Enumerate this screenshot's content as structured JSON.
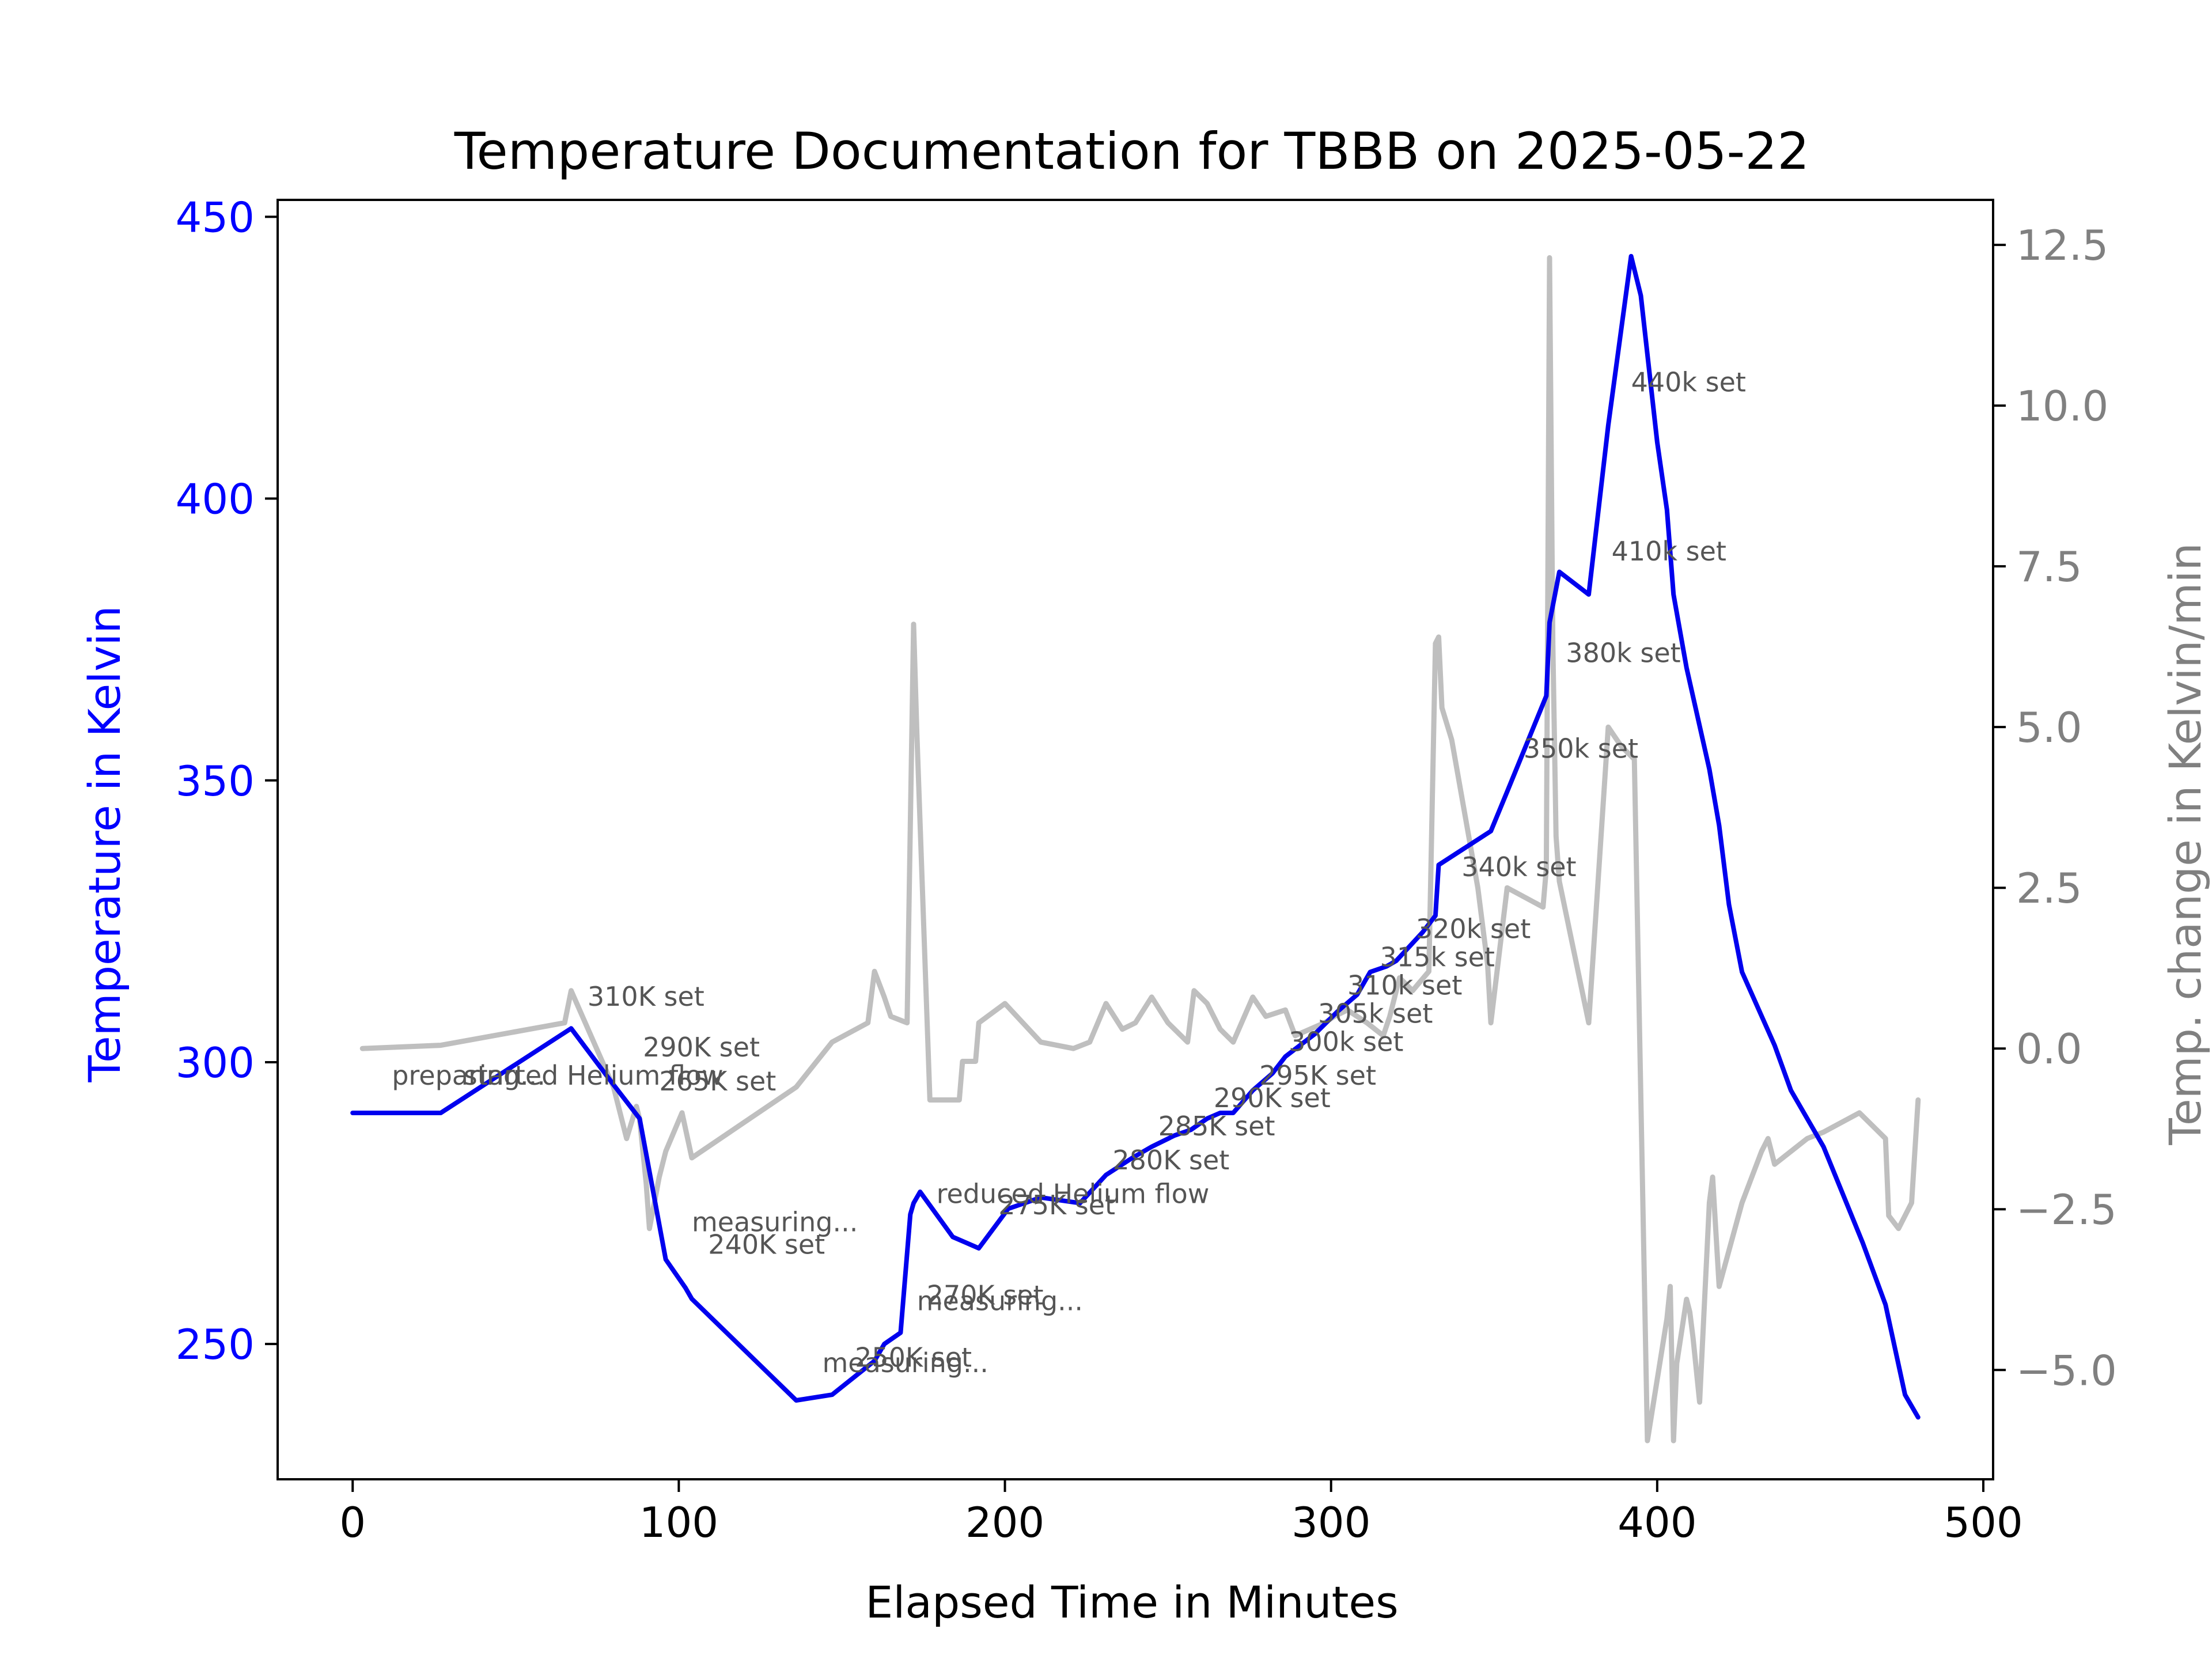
{
  "chart_data": {
    "type": "line",
    "title": "Temperature Documentation for TBBB on 2025-05-22",
    "xlabel": "Elapsed Time in Minutes",
    "ylabel_left": "Temperature in Kelvin",
    "ylabel_right": "Temp. change in Kelvin/min",
    "xlim": [
      -23,
      503
    ],
    "ylim_left": [
      226,
      453
    ],
    "ylim_right": [
      -6.7,
      13.2
    ],
    "xticks": [
      0,
      100,
      200,
      300,
      400,
      500
    ],
    "yticks_left": [
      250,
      300,
      350,
      400,
      450
    ],
    "yticks_right": [
      -5.0,
      -2.5,
      0.0,
      2.5,
      5.0,
      7.5,
      10.0,
      12.5
    ],
    "yticks_right_labels": [
      "−5.0",
      "−2.5",
      "0.0",
      "2.5",
      "5.0",
      "7.5",
      "10.0",
      "12.5"
    ],
    "colors": {
      "temperature": "#0000ee",
      "rate": "#bfbfbf",
      "left_axis": "#0000ff",
      "right_axis": "#808080",
      "annotation": "#555555"
    },
    "grid": false,
    "series": [
      {
        "axis": "left",
        "color": "#0000ee",
        "x": [
          0,
          5,
          27,
          67,
          80,
          88,
          96,
          102,
          104,
          136,
          147,
          160,
          163,
          168,
          171,
          172,
          174,
          184,
          192,
          201,
          211,
          223,
          231,
          239,
          245,
          252,
          257,
          262,
          266,
          270,
          276,
          282,
          286,
          295,
          302,
          308,
          312,
          317,
          320,
          328,
          332,
          333,
          349,
          354,
          366,
          367,
          370,
          379,
          385,
          392,
          395,
          400,
          403,
          405,
          409,
          416,
          419,
          422,
          426,
          436,
          441,
          451,
          463,
          470,
          476,
          480
        ],
        "y": [
          291,
          291,
          291,
          306,
          296,
          290,
          265,
          260,
          258,
          240,
          241,
          247,
          250,
          252,
          273,
          275,
          277,
          269,
          267,
          274,
          276,
          275,
          280,
          283,
          285,
          287,
          288,
          290,
          291,
          291,
          295,
          298,
          301,
          305,
          309,
          312,
          316,
          317,
          318,
          323,
          326,
          335,
          341,
          348,
          365,
          378,
          387,
          383,
          413,
          443,
          436,
          410,
          398,
          383,
          370,
          352,
          342,
          328,
          316,
          303,
          295,
          285,
          268,
          257,
          241,
          237
        ]
      },
      {
        "axis": "right",
        "color": "#bfbfbf",
        "x": [
          3,
          27,
          65,
          67,
          80,
          84,
          87,
          88,
          90,
          91,
          94,
          96,
          101,
          104,
          136,
          147,
          158,
          160,
          163,
          165,
          170,
          172,
          173,
          177,
          186,
          187,
          191,
          192,
          200,
          211,
          221,
          226,
          231,
          236,
          240,
          245,
          250,
          256,
          258,
          262,
          266,
          270,
          276,
          280,
          286,
          289,
          298,
          301,
          305,
          311,
          316,
          318,
          321,
          325,
          330,
          332,
          333,
          334,
          337,
          345,
          348,
          349,
          354,
          365,
          366,
          367,
          368,
          369,
          370,
          379,
          385,
          389,
          393,
          397,
          403,
          404,
          405,
          406,
          409,
          410,
          411,
          413,
          416,
          417,
          419,
          426,
          432,
          434,
          436,
          441,
          446,
          451,
          462,
          470,
          471,
          474,
          478,
          480
        ],
        "y": [
          0.0,
          0.05,
          0.4,
          0.9,
          -0.6,
          -1.4,
          -0.9,
          -1.1,
          -2.1,
          -2.8,
          -2.0,
          -1.6,
          -1.0,
          -1.7,
          -0.6,
          0.1,
          0.4,
          1.2,
          0.8,
          0.5,
          0.4,
          6.6,
          4.9,
          -0.8,
          -0.8,
          -0.2,
          -0.2,
          0.4,
          0.7,
          0.1,
          0.0,
          0.1,
          0.7,
          0.3,
          0.4,
          0.8,
          0.4,
          0.1,
          0.9,
          0.7,
          0.3,
          0.1,
          0.8,
          0.5,
          0.6,
          0.2,
          0.4,
          0.5,
          0.6,
          0.4,
          0.2,
          0.5,
          1.1,
          0.9,
          1.2,
          6.3,
          6.4,
          5.3,
          4.8,
          2.5,
          1.3,
          0.4,
          2.5,
          2.2,
          2.8,
          12.3,
          6.3,
          3.3,
          2.6,
          0.4,
          5.0,
          4.7,
          4.5,
          -6.1,
          -4.2,
          -3.7,
          -6.1,
          -4.9,
          -3.9,
          -4.1,
          -4.5,
          -5.5,
          -2.4,
          -2.0,
          -3.7,
          -2.4,
          -1.6,
          -1.4,
          -1.8,
          -1.6,
          -1.4,
          -1.3,
          -1.0,
          -1.4,
          -2.6,
          -2.8,
          -2.4,
          -0.8
        ]
      }
    ],
    "annotations": [
      {
        "text": "310K set",
        "x": 72,
        "y": 310
      },
      {
        "text": "preparing...",
        "x": 12,
        "y": 296
      },
      {
        "text": "started Helium flow",
        "x": 34,
        "y": 296
      },
      {
        "text": "290K set",
        "x": 89,
        "y": 301
      },
      {
        "text": "265K set",
        "x": 94,
        "y": 295
      },
      {
        "text": "measuring...",
        "x": 104,
        "y": 270
      },
      {
        "text": "240K set",
        "x": 109,
        "y": 266
      },
      {
        "text": "reduced Helium flow",
        "x": 179,
        "y": 275
      },
      {
        "text": "275K set",
        "x": 198,
        "y": 273
      },
      {
        "text": "270K set",
        "x": 176,
        "y": 257
      },
      {
        "text": "measuring...",
        "x": 173,
        "y": 256
      },
      {
        "text": "250K set",
        "x": 154,
        "y": 246
      },
      {
        "text": "measuring...",
        "x": 144,
        "y": 245
      },
      {
        "text": "280K set",
        "x": 233,
        "y": 281
      },
      {
        "text": "285K set",
        "x": 247,
        "y": 287
      },
      {
        "text": "290K set",
        "x": 264,
        "y": 292
      },
      {
        "text": "295K set",
        "x": 278,
        "y": 296
      },
      {
        "text": "300k set",
        "x": 287,
        "y": 302
      },
      {
        "text": "305k set",
        "x": 296,
        "y": 307
      },
      {
        "text": "310k set",
        "x": 305,
        "y": 312
      },
      {
        "text": "315k set",
        "x": 315,
        "y": 317
      },
      {
        "text": "320k set",
        "x": 326,
        "y": 322
      },
      {
        "text": "340k set",
        "x": 340,
        "y": 333
      },
      {
        "text": "350k set",
        "x": 359,
        "y": 354
      },
      {
        "text": "380k set",
        "x": 372,
        "y": 371
      },
      {
        "text": "410k set",
        "x": 386,
        "y": 389
      },
      {
        "text": "440k set",
        "x": 392,
        "y": 419
      }
    ]
  }
}
